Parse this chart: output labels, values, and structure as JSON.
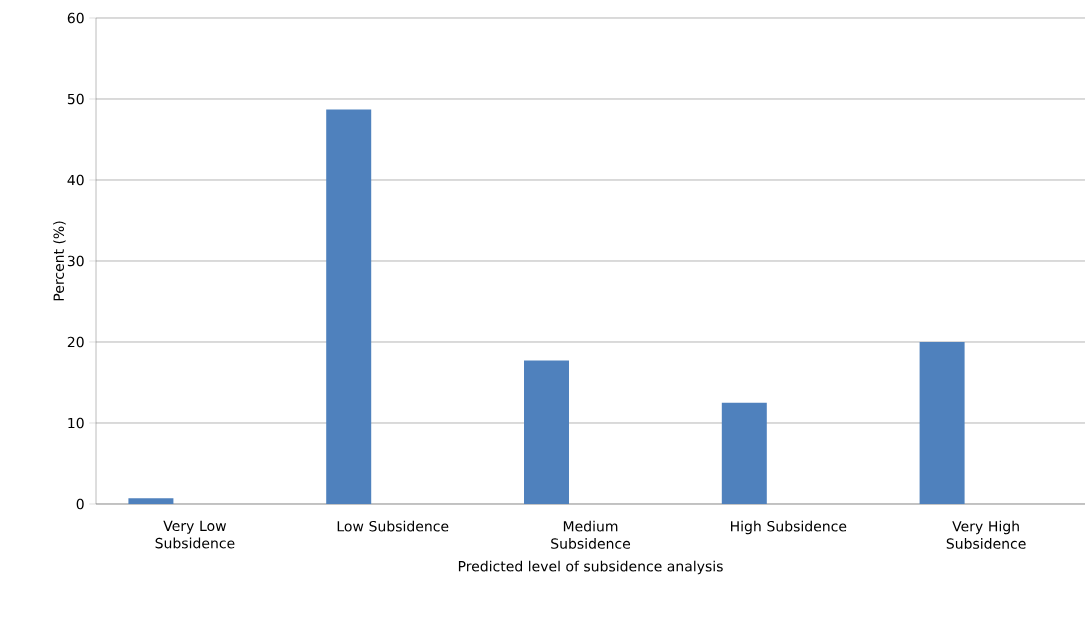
{
  "chart_data": {
    "type": "bar",
    "xlabel": "Predicted level of subsidence analysis",
    "ylabel": "Percent (%)",
    "categories": [
      "Very Low Subsidence",
      "Low Subsidence",
      "Medium Subsidence",
      "High Subsidence",
      "Very High Subsidence"
    ],
    "values": [
      0.7,
      48.7,
      17.7,
      12.5,
      20.0
    ],
    "color": "#4f81bd",
    "ylim": [
      0,
      60
    ],
    "yticks": [
      0,
      10,
      20,
      30,
      40,
      50,
      60
    ],
    "grid": "y"
  }
}
